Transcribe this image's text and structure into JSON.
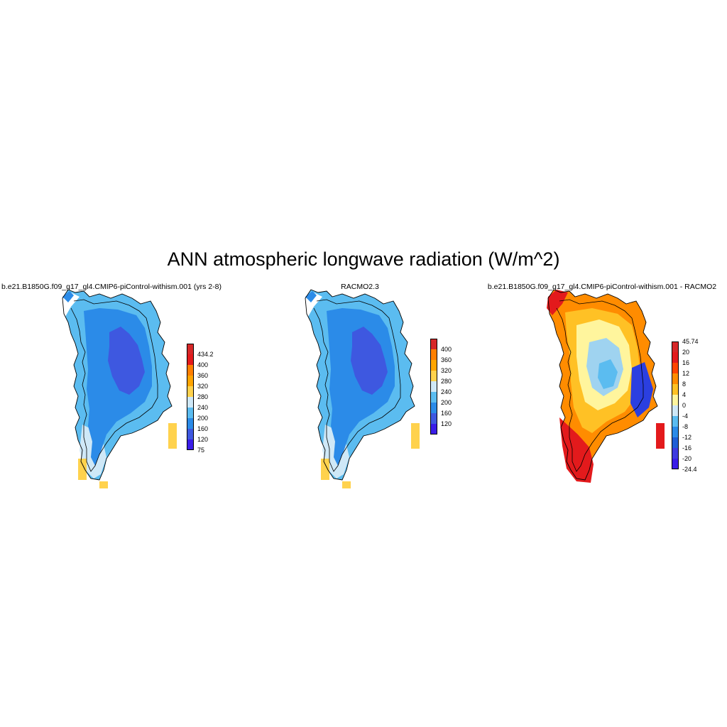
{
  "figure": {
    "title": "ANN atmospheric longwave radiation (W/m^2)"
  },
  "panels": [
    {
      "id": "model",
      "title": "b.e21.B1850G.f09_g17_gl4.CMIP6-piControl-withism.001 (yrs 2-8)",
      "colorbar": {
        "colors": [
          "#d62728",
          "#e31a1c",
          "#ff7f00",
          "#ffa500",
          "#ffd24d",
          "#cfe8f7",
          "#5bbcf0",
          "#2b8be8",
          "#3e58e0",
          "#3a1de8"
        ],
        "labels": [
          "434.2",
          "400",
          "360",
          "320",
          "280",
          "240",
          "200",
          "160",
          "120",
          "75"
        ]
      },
      "field_colors": {
        "interior": "#3e58e0",
        "slope": "#2b8be8",
        "margin": "#5bbcf0",
        "coast": "#cfe8f7",
        "islands": "#ffd24d"
      }
    },
    {
      "id": "obs",
      "title": "RACMO2.3",
      "colorbar": {
        "colors": [
          "#d62728",
          "#ff7f00",
          "#ffa500",
          "#ffd24d",
          "#cfe8f7",
          "#5bbcf0",
          "#2b8be8",
          "#3e58e0",
          "#3a1de8"
        ],
        "labels": [
          "400",
          "360",
          "320",
          "280",
          "240",
          "200",
          "160",
          "120"
        ]
      },
      "field_colors": {
        "interior": "#3e58e0",
        "slope": "#2b8be8",
        "margin": "#5bbcf0",
        "coast": "#cfe8f7",
        "islands": "#ffd24d"
      }
    },
    {
      "id": "diff",
      "title": "b.e21.B1850G.f09_g17_gl4.CMIP6-piControl-withism.001 - RACMO2",
      "colorbar": {
        "colors": [
          "#d62728",
          "#e31a1c",
          "#ff4500",
          "#ff8c00",
          "#ffc125",
          "#fff59d",
          "#cfe8f7",
          "#5bbcf0",
          "#2b8be8",
          "#1f5fd6",
          "#3e3be0",
          "#3a1de8"
        ],
        "labels": [
          "45.74",
          "20",
          "16",
          "12",
          "8",
          "4",
          "0",
          "-4",
          "-8",
          "-12",
          "-16",
          "-20",
          "-24.4"
        ]
      },
      "field_colors": {
        "interior": "#9fd3f0",
        "center": "#5bbcf0",
        "ring": "#fff59d",
        "belt": "#ffc125",
        "margin": "#ff8c00",
        "hot": "#e31a1c",
        "cold": "#2b3fe0"
      }
    }
  ]
}
